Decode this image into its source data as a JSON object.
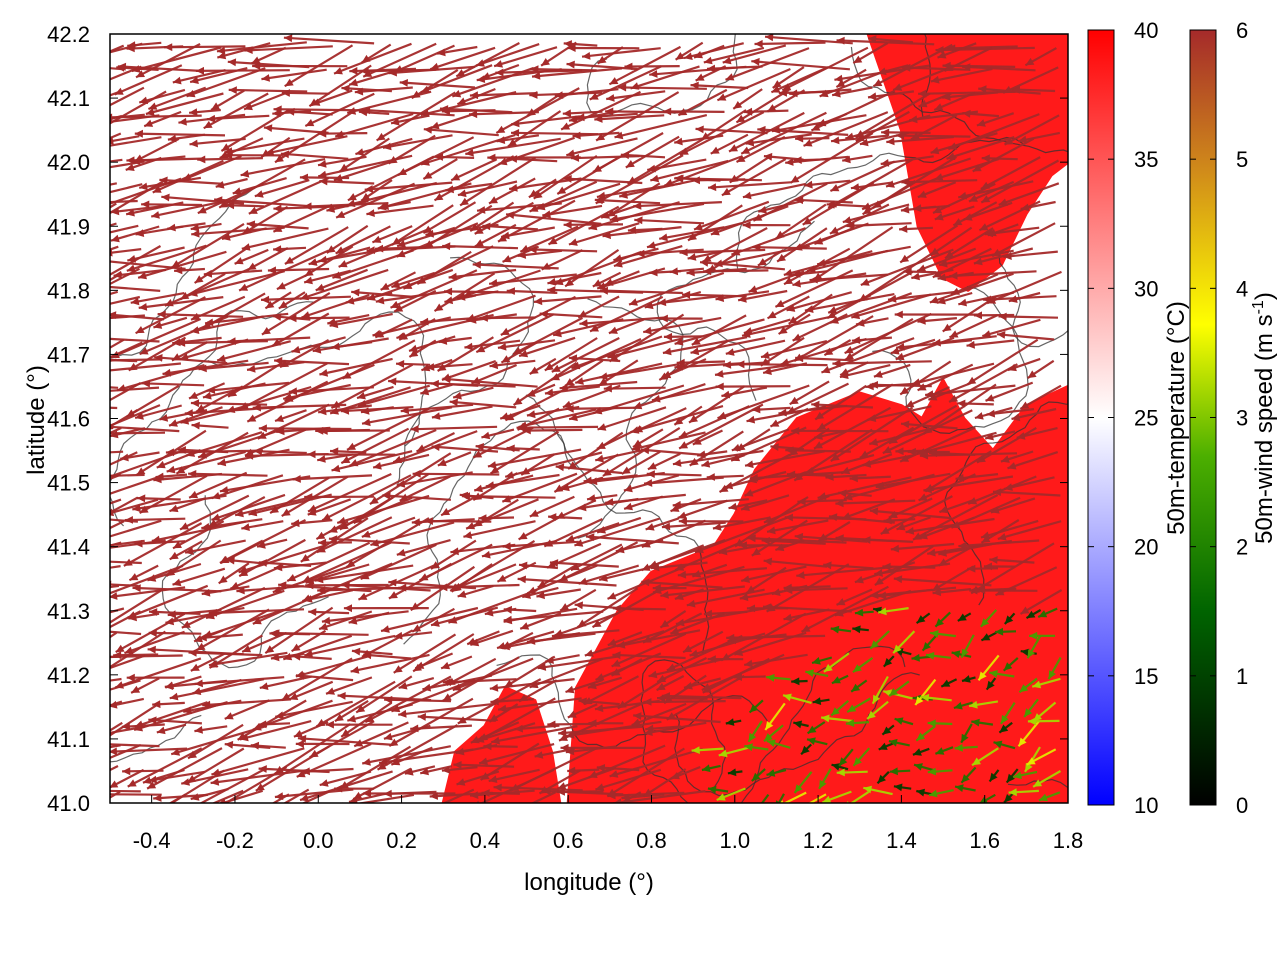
{
  "chart_data": {
    "type": "heatmap",
    "title": "",
    "xlabel": "longitude (°)",
    "ylabel": "latitude (°)",
    "xlim": [
      -0.5,
      1.8
    ],
    "ylim": [
      41.0,
      42.2
    ],
    "xticks": [
      -0.4,
      -0.2,
      0.0,
      0.2,
      0.4,
      0.6,
      0.8,
      1.0,
      1.2,
      1.4,
      1.6,
      1.8
    ],
    "xtick_labels": [
      "-0.4",
      "-0.2",
      "0.0",
      "0.2",
      "0.4",
      "0.6",
      "0.8",
      "1.0",
      "1.2",
      "1.4",
      "1.6",
      "1.8"
    ],
    "yticks": [
      41.0,
      41.1,
      41.2,
      41.3,
      41.4,
      41.5,
      41.6,
      41.7,
      41.8,
      41.9,
      42.0,
      42.1,
      42.2
    ],
    "ytick_labels": [
      "41.0",
      "41.1",
      "41.2",
      "41.3",
      "41.4",
      "41.5",
      "41.6",
      "41.7",
      "41.8",
      "41.9",
      "42.0",
      "42.1",
      "42.2"
    ],
    "grid": false,
    "layers": [
      {
        "kind": "filled-field",
        "name": "50m-temperature (°C)",
        "note_cmap": "blue-white-red",
        "range": [
          10,
          40
        ],
        "colorbar_ticks": [
          10,
          15,
          20,
          25,
          30,
          35,
          40
        ],
        "hot_region_polygon": [
          [
            0.6,
            41.0
          ],
          [
            0.62,
            41.18
          ],
          [
            0.72,
            41.3
          ],
          [
            0.8,
            41.36
          ],
          [
            0.95,
            41.4
          ],
          [
            1.0,
            41.45
          ],
          [
            1.05,
            41.52
          ],
          [
            1.15,
            41.6
          ],
          [
            1.3,
            41.64
          ],
          [
            1.4,
            41.62
          ],
          [
            1.45,
            41.6
          ],
          [
            1.5,
            41.66
          ],
          [
            1.55,
            41.6
          ],
          [
            1.62,
            41.55
          ],
          [
            1.7,
            41.62
          ],
          [
            1.8,
            41.65
          ],
          [
            1.8,
            41.0
          ]
        ],
        "hot_region_north_polygon": [
          [
            1.32,
            42.2
          ],
          [
            1.4,
            42.05
          ],
          [
            1.44,
            41.9
          ],
          [
            1.5,
            41.82
          ],
          [
            1.56,
            41.8
          ],
          [
            1.64,
            41.84
          ],
          [
            1.7,
            41.92
          ],
          [
            1.76,
            41.98
          ],
          [
            1.8,
            42.0
          ],
          [
            1.8,
            42.2
          ]
        ],
        "hot_region_small_polygon": [
          [
            0.3,
            41.0
          ],
          [
            0.33,
            41.08
          ],
          [
            0.4,
            41.12
          ],
          [
            0.45,
            41.18
          ],
          [
            0.52,
            41.16
          ],
          [
            0.56,
            41.08
          ],
          [
            0.58,
            41.0
          ]
        ],
        "hot_value_approx": 39
      },
      {
        "kind": "contour",
        "name": "terrain height",
        "levels_shown": 6
      },
      {
        "kind": "vector",
        "name": "50m-wind speed (m s-1)",
        "range": [
          0,
          6
        ],
        "colorbar_ticks": [
          0,
          1,
          2,
          3,
          4,
          5,
          6
        ],
        "note_colormap": "black-green-yellow-brown",
        "dominant_direction": "westward (from east)",
        "saturated_speed_region": "most of the domain at or above 6 m s-1",
        "slow_wind_region": "south-east corner (lon 1.0–1.8, lat 41.0–41.3), speeds about 1–4 m s-1"
      }
    ],
    "colorbars": [
      {
        "label": "50m-temperature (°C)",
        "min": 10,
        "max": 40,
        "ticks": [
          10,
          15,
          20,
          25,
          30,
          35,
          40
        ],
        "colors": [
          "#0000ff",
          "#ffffff",
          "#ff0000"
        ]
      },
      {
        "label": "50m-wind speed (m s",
        "label_sup": "-1",
        "label_tail": ")",
        "min": 0,
        "max": 6,
        "ticks": [
          0,
          1,
          2,
          3,
          4,
          5,
          6
        ],
        "colors": [
          "#000000",
          "#006400",
          "#2e8b00",
          "#ffff00",
          "#d2a000",
          "#c06020",
          "#a52a2a"
        ]
      }
    ]
  }
}
